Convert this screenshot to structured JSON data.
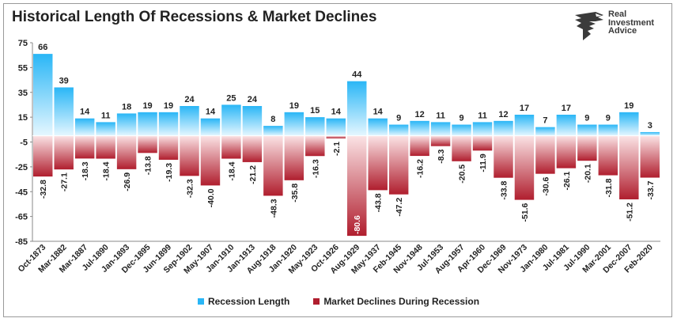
{
  "title": "Historical Length Of Recessions & Market Declines",
  "logo": {
    "line1": "Real",
    "line2": "Investment",
    "line3": "Advice"
  },
  "colors": {
    "recession": "#29b6f6",
    "recession_light": "#e6f7ff",
    "decline": "#b01e2e",
    "decline_light": "#fbe3e5"
  },
  "chart_data": {
    "type": "bar",
    "title": "Historical Length Of Recessions & Market Declines",
    "categories": [
      "Oct-1873",
      "Mar-1882",
      "Mar-1887",
      "Jul-1890",
      "Jan-1893",
      "Dec-1895",
      "Jun-1899",
      "Sep-1902",
      "May-1907",
      "Jan-1910",
      "Jan-1913",
      "Aug-1918",
      "Jan-1920",
      "May-1923",
      "Oct-1926",
      "Aug-1929",
      "May-1937",
      "Feb-1945",
      "Nov-1948",
      "Jul-1953",
      "Aug-1957",
      "Apr-1960",
      "Dec-1969",
      "Nov-1973",
      "Jan-1980",
      "Jul-1981",
      "Jul-1990",
      "Mar-2001",
      "Dec-2007",
      "Feb-2020"
    ],
    "series": [
      {
        "name": "Recession Length",
        "values": [
          66,
          39,
          14,
          11,
          18,
          19,
          19,
          24,
          14,
          25,
          24,
          8,
          19,
          15,
          14,
          44,
          14,
          9,
          12,
          11,
          9,
          11,
          12,
          17,
          7,
          17,
          9,
          9,
          19,
          3
        ]
      },
      {
        "name": "Market Declines During Recession",
        "values": [
          -32.8,
          -27.1,
          -18.3,
          -18.4,
          -26.9,
          -13.8,
          -19.3,
          -32.3,
          -40.0,
          -18.4,
          -21.2,
          -48.3,
          -35.8,
          -16.3,
          -2.1,
          -80.6,
          -43.8,
          -47.2,
          -16.2,
          -8.3,
          -20.5,
          -11.9,
          -33.8,
          -51.6,
          -30.6,
          -26.1,
          -20.1,
          -31.8,
          -51.2,
          -33.7
        ]
      }
    ],
    "value_labels_recession": [
      "66",
      "39",
      "14",
      "11",
      "18",
      "19",
      "19",
      "24",
      "14",
      "25",
      "24",
      "8",
      "19",
      "15",
      "14",
      "44",
      "14",
      "9",
      "12",
      "11",
      "9",
      "11",
      "12",
      "17",
      "7",
      "17",
      "9",
      "9",
      "19",
      "3"
    ],
    "value_labels_decline": [
      "-32.8",
      "-27.1",
      "-18.3",
      "-18.4",
      "-26.9",
      "-13.8",
      "-19.3",
      "-32.3",
      "-40.0",
      "-18.4",
      "-21.2",
      "-48.3",
      "-35.8",
      "-16.3",
      "-2.1",
      "-80.6",
      "-43.8",
      "-47.2",
      "-16.2",
      "-8.3",
      "-20.5",
      "-11.9",
      "-33.8",
      "-51.6",
      "-30.6",
      "-26.1",
      "-20.1",
      "-31.8",
      "-51.2",
      "-33.7"
    ],
    "y_ticks": [
      "75",
      "55",
      "35",
      "15",
      "-5",
      "-25",
      "-45",
      "-65",
      "-85"
    ],
    "ylim": [
      -85,
      75
    ],
    "grid": false,
    "legend_position": "bottom-center"
  }
}
